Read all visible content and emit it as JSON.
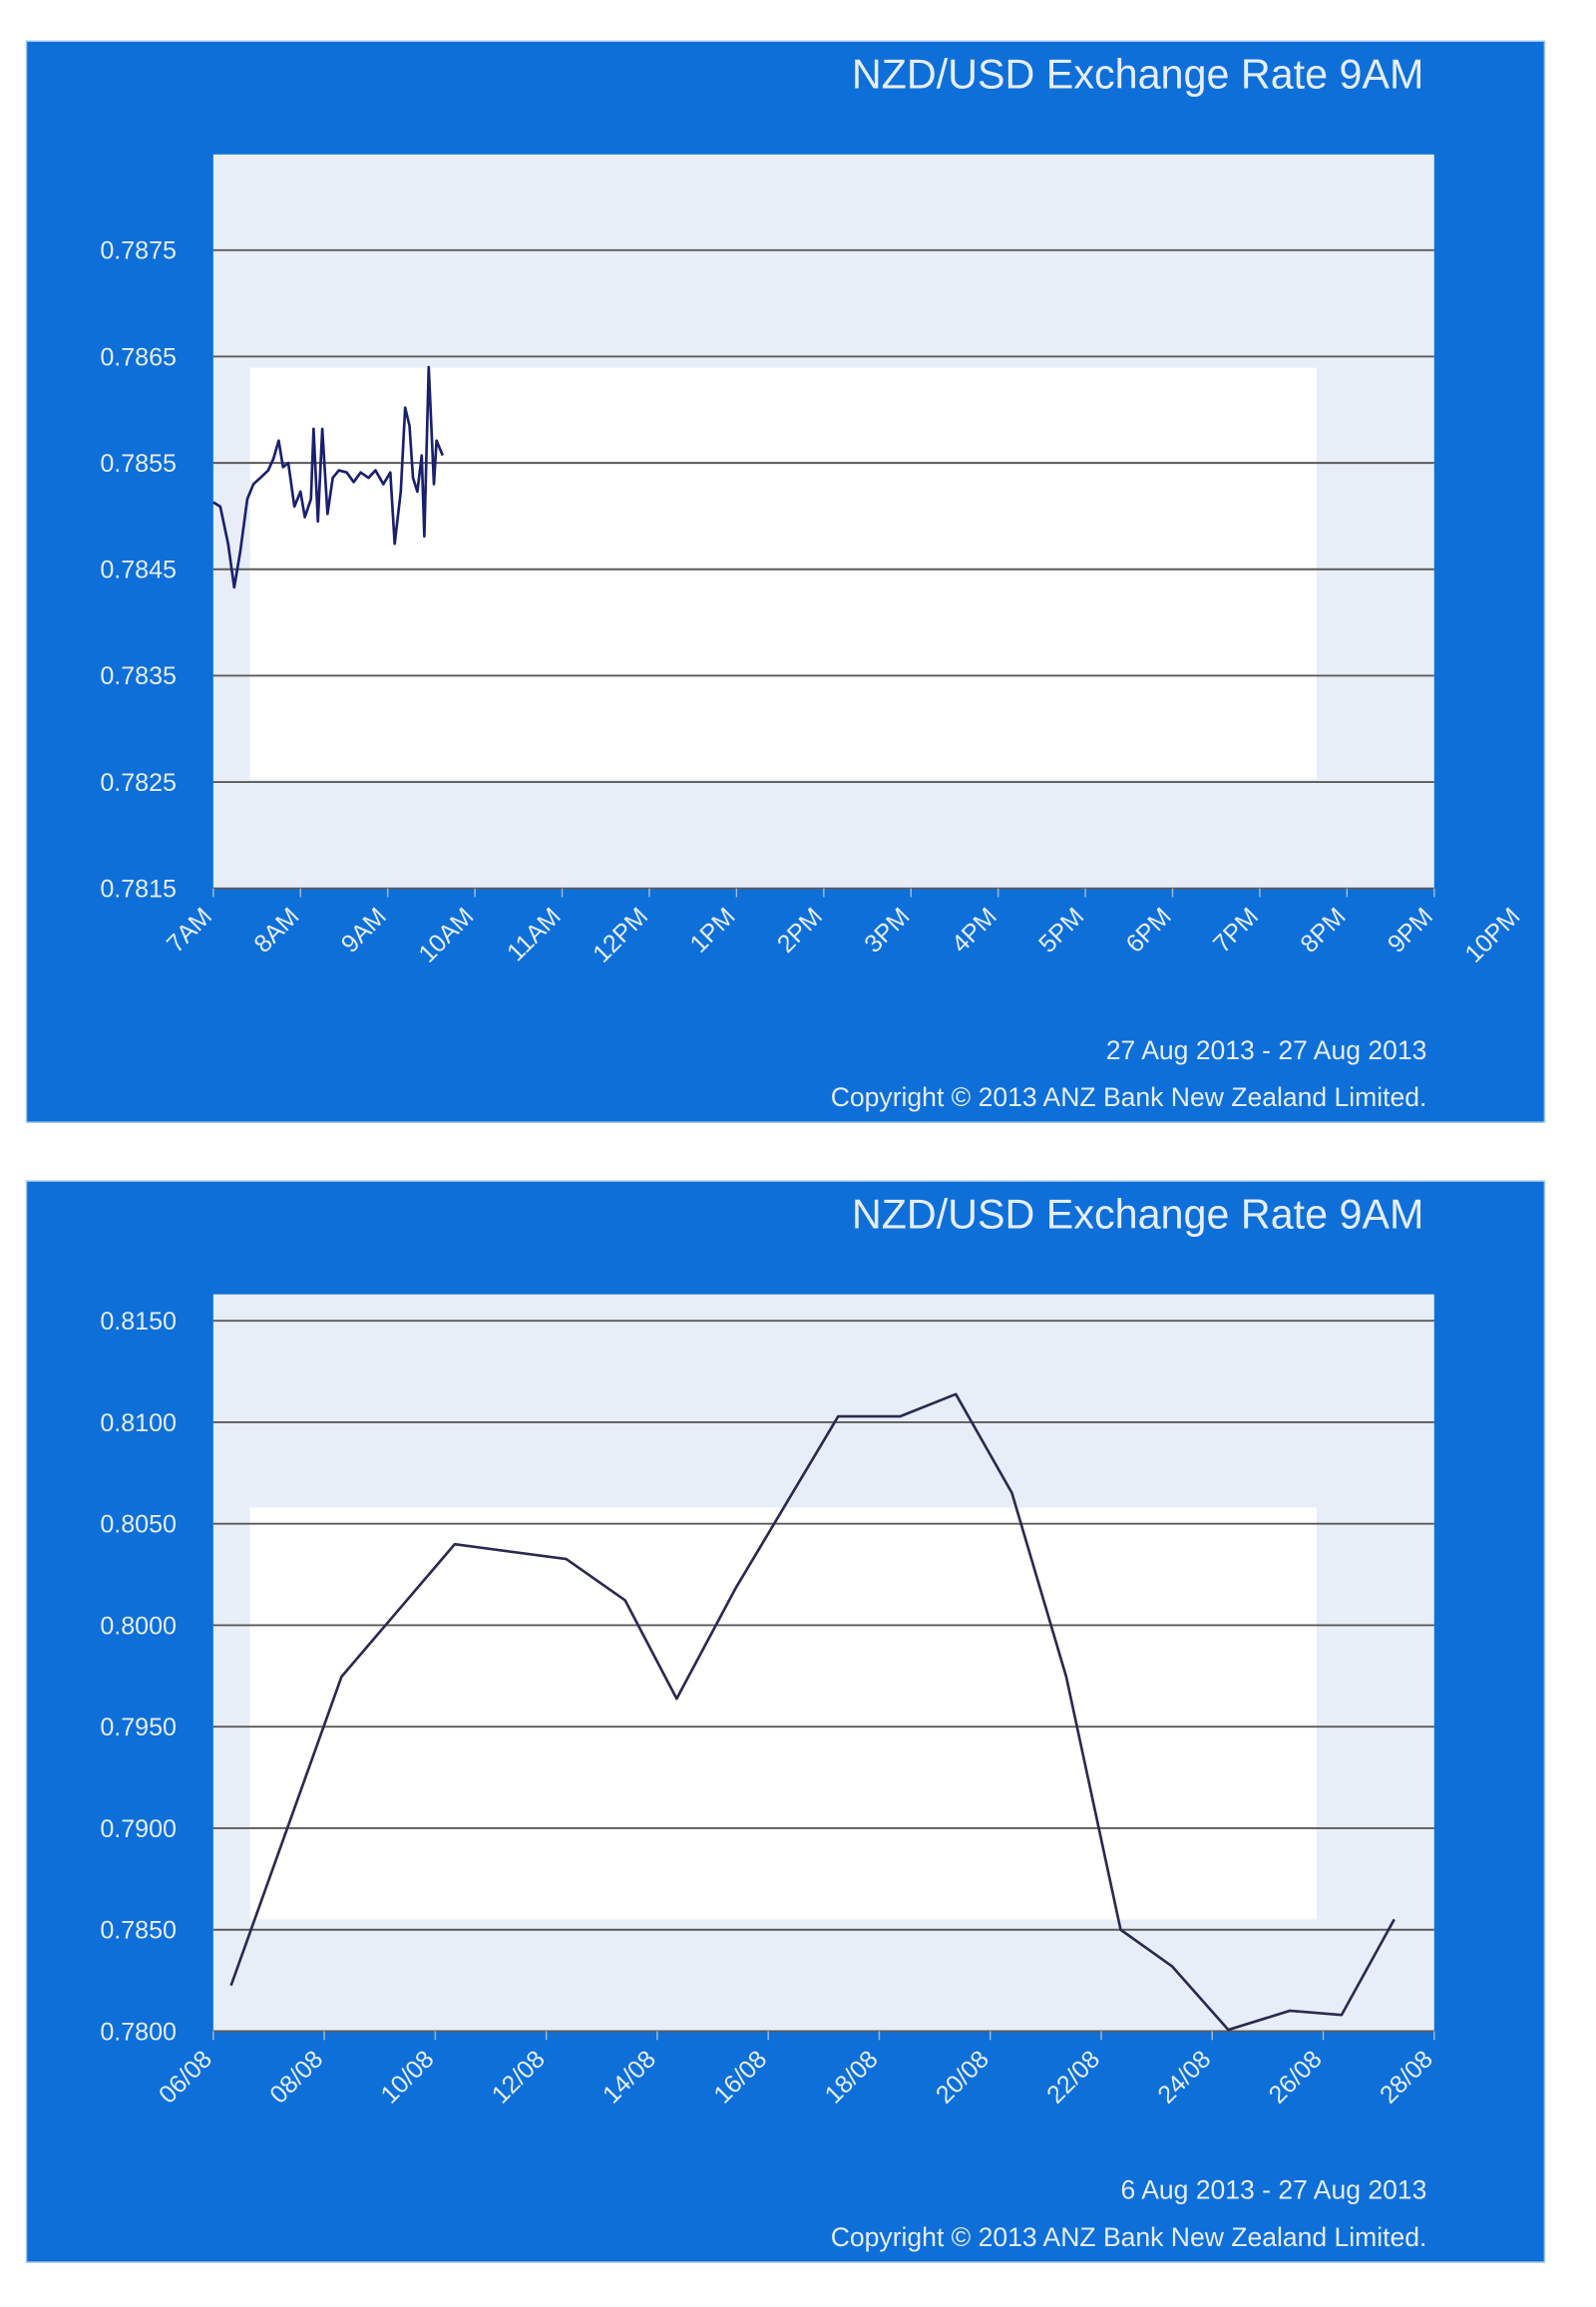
{
  "chart_data": [
    {
      "type": "line",
      "title": "NZD/USD Exchange Rate  9AM",
      "date_range": "27 Aug 2013 - 27 Aug 2013",
      "copyright": "Copyright © 2013 ANZ Bank New Zealand Limited.",
      "x": [
        7,
        7.08,
        7.17,
        7.24,
        7.31,
        7.39,
        7.46,
        7.54,
        7.63,
        7.69,
        7.75,
        7.8,
        7.86,
        7.93,
        8,
        8.05,
        8.12,
        8.15,
        8.2,
        8.25,
        8.31,
        8.37,
        8.44,
        8.53,
        8.61,
        8.69,
        8.78,
        8.86,
        8.95,
        9.03,
        9.08,
        9.15,
        9.2,
        9.25,
        9.29,
        9.34,
        9.39,
        9.42,
        9.47,
        9.53,
        9.56,
        9.63
      ],
      "series": [
        {
          "name": "NZD/USD",
          "color": "#1a1f6e",
          "values": [
            0.78513,
            0.78509,
            0.78474,
            0.78433,
            0.78467,
            0.78516,
            0.7853,
            0.78536,
            0.78543,
            0.78554,
            0.78571,
            0.78546,
            0.7855,
            0.78509,
            0.78523,
            0.78499,
            0.78516,
            0.78582,
            0.78495,
            0.78582,
            0.78502,
            0.78536,
            0.78543,
            0.78541,
            0.78532,
            0.78541,
            0.78536,
            0.78543,
            0.7853,
            0.78541,
            0.78474,
            0.78523,
            0.78602,
            0.78585,
            0.78536,
            0.78523,
            0.78557,
            0.78481,
            0.7864,
            0.7853,
            0.78571,
            0.78557
          ]
        }
      ],
      "xlim": [
        7,
        21
      ],
      "xticks": [
        {
          "value": 7,
          "label": "7AM"
        },
        {
          "value": 8,
          "label": "8AM"
        },
        {
          "value": 9,
          "label": "9AM"
        },
        {
          "value": 10,
          "label": "10AM"
        },
        {
          "value": 11,
          "label": "11AM"
        },
        {
          "value": 12,
          "label": "12PM"
        },
        {
          "value": 13,
          "label": "1PM"
        },
        {
          "value": 14,
          "label": "2PM"
        },
        {
          "value": 15,
          "label": "3PM"
        },
        {
          "value": 16,
          "label": "4PM"
        },
        {
          "value": 17,
          "label": "5PM"
        },
        {
          "value": 18,
          "label": "6PM"
        },
        {
          "value": 19,
          "label": "7PM"
        },
        {
          "value": 20,
          "label": "8PM"
        },
        {
          "value": 21,
          "label": "9PM"
        },
        {
          "value": 22,
          "label": "10PM"
        }
      ],
      "ylim": [
        0.7815,
        0.7884
      ],
      "yticks": [
        0.7815,
        0.7825,
        0.7835,
        0.7845,
        0.7855,
        0.7865,
        0.7875
      ],
      "grid": true
    },
    {
      "type": "line",
      "title": "NZD/USD Exchange Rate  9AM",
      "date_range": "6 Aug 2013 - 27 Aug 2013",
      "copyright": "Copyright © 2013 ANZ Bank New Zealand Limited.",
      "x": [
        6.32,
        8.31,
        10.35,
        12.36,
        13.42,
        14.35,
        15.41,
        16.2,
        17.26,
        18.38,
        19.38,
        20.39,
        21.37,
        22.35,
        23.28,
        24.29,
        25.4,
        26.33,
        27.28
      ],
      "series": [
        {
          "name": "NZD/USD",
          "color": "#2a2a4e",
          "values": [
            0.78225,
            0.79746,
            0.80399,
            0.80326,
            0.80123,
            0.79638,
            0.80181,
            0.80543,
            0.81029,
            0.81029,
            0.81138,
            0.80652,
            0.79746,
            0.785,
            0.78319,
            0.78007,
            0.78101,
            0.7808,
            0.78551
          ]
        }
      ],
      "xlim": [
        6,
        28
      ],
      "xticks": [
        {
          "value": 6,
          "label": "06/08"
        },
        {
          "value": 8,
          "label": "08/08"
        },
        {
          "value": 10,
          "label": "10/08"
        },
        {
          "value": 12,
          "label": "12/08"
        },
        {
          "value": 14,
          "label": "14/08"
        },
        {
          "value": 16,
          "label": "16/08"
        },
        {
          "value": 18,
          "label": "18/08"
        },
        {
          "value": 20,
          "label": "20/08"
        },
        {
          "value": 22,
          "label": "22/08"
        },
        {
          "value": 24,
          "label": "24/08"
        },
        {
          "value": 26,
          "label": "26/08"
        },
        {
          "value": 28,
          "label": "28/08"
        }
      ],
      "ylim": [
        0.78,
        0.8163
      ],
      "yticks": [
        {
          "value": 0.78,
          "label": "0.7800"
        },
        {
          "value": 0.785,
          "label": "0.7850"
        },
        {
          "value": 0.79,
          "label": "0.7900"
        },
        {
          "value": 0.795,
          "label": "0.7950"
        },
        {
          "value": 0.8,
          "label": "0.8000"
        },
        {
          "value": 0.805,
          "label": "0.8050"
        },
        {
          "value": 0.81,
          "label": "0.8100"
        },
        {
          "value": 0.815,
          "label": "0.8150"
        }
      ],
      "grid": true
    }
  ]
}
